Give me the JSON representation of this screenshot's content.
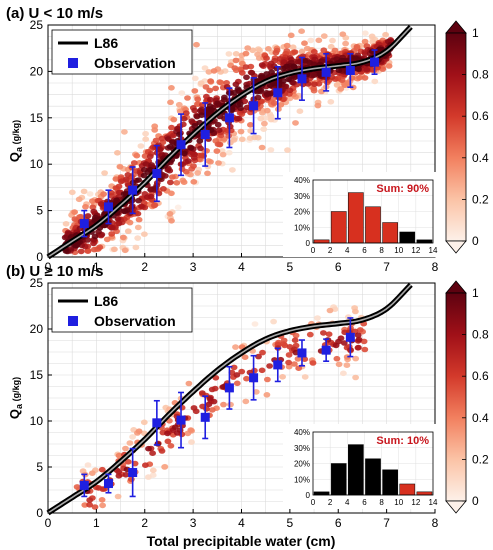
{
  "figure": {
    "xlabel": "Total precipitable water (cm)"
  },
  "chart_data": [
    {
      "type": "scatter",
      "title": "(a) U < 10 m/s",
      "xlabel": "",
      "ylabel": "Q",
      "ylabel_sub": "a",
      "ylabel_unit": " (g/kg)",
      "xlim": [
        0,
        8
      ],
      "ylim": [
        0,
        25
      ],
      "xticks": [
        "0",
        "1",
        "2",
        "3",
        "4",
        "5",
        "6",
        "7",
        "8"
      ],
      "yticks": [
        "0",
        "5",
        "10",
        "15",
        "20",
        "25"
      ],
      "grid": true,
      "legend": {
        "placement": "top-left",
        "entries": [
          "L86",
          "Observation"
        ]
      },
      "colorbar": {
        "ticks": [
          "0",
          "0.2",
          "0.4",
          "0.6",
          "0.8",
          "1"
        ],
        "colors": [
          "#fdf1e9",
          "#fbc3a6",
          "#f2805f",
          "#d33a2b",
          "#a01018",
          "#5e0210"
        ]
      },
      "series": [
        {
          "name": "L86",
          "type": "line",
          "x": [
            0,
            0.5,
            1,
            1.5,
            2,
            2.5,
            3,
            3.5,
            4,
            4.5,
            5,
            5.5,
            6,
            6.5,
            7,
            7.5
          ],
          "y": [
            0,
            1.7,
            3.4,
            5.6,
            8.0,
            10.7,
            13.2,
            15.5,
            17.4,
            18.9,
            19.8,
            20.3,
            20.6,
            21.0,
            22.2,
            24.8
          ]
        },
        {
          "name": "Observation",
          "type": "errorbar",
          "x": [
            0.75,
            1.25,
            1.75,
            2.25,
            2.75,
            3.25,
            3.75,
            4.25,
            4.75,
            5.25,
            5.75,
            6.25,
            6.75
          ],
          "y": [
            3.6,
            5.4,
            7.2,
            9.0,
            12.1,
            13.2,
            15.0,
            16.3,
            17.7,
            19.2,
            19.9,
            20.1,
            21.0
          ],
          "err": [
            1.4,
            1.8,
            2.5,
            3.0,
            3.3,
            3.4,
            3.2,
            3.0,
            2.8,
            2.3,
            2.0,
            1.8,
            1.3
          ]
        }
      ],
      "inset": {
        "type": "bar",
        "xticks": [
          "0",
          "2",
          "4",
          "6",
          "8",
          "10",
          "12",
          "14"
        ],
        "yticks": [
          "0",
          "10%",
          "20%",
          "30%",
          "40%"
        ],
        "values": [
          2,
          20,
          32,
          23,
          13,
          7,
          2
        ],
        "colors": [
          "#d7301f",
          "#d7301f",
          "#d7301f",
          "#d7301f",
          "#d7301f",
          "#000000",
          "#000000"
        ],
        "annotation": "Sum: 90%"
      }
    },
    {
      "type": "scatter",
      "title": "(b) U ≥ 10 m/s",
      "xlabel": "Total precipitable water (cm)",
      "ylabel": "Q",
      "ylabel_sub": "a",
      "ylabel_unit": " (g/kg)",
      "xlim": [
        0,
        8
      ],
      "ylim": [
        0,
        25
      ],
      "xticks": [
        "0",
        "1",
        "2",
        "3",
        "4",
        "5",
        "6",
        "7",
        "8"
      ],
      "yticks": [
        "0",
        "5",
        "10",
        "15",
        "20",
        "25"
      ],
      "grid": true,
      "legend": {
        "placement": "top-left",
        "entries": [
          "L86",
          "Observation"
        ]
      },
      "colorbar": {
        "ticks": [
          "0",
          "0.2",
          "0.4",
          "0.6",
          "0.8",
          "1"
        ],
        "colors": [
          "#fdf1e9",
          "#fbc3a6",
          "#f2805f",
          "#d33a2b",
          "#a01018",
          "#5e0210"
        ]
      },
      "series": [
        {
          "name": "L86",
          "type": "line",
          "x": [
            0,
            0.5,
            1,
            1.5,
            2,
            2.5,
            3,
            3.5,
            4,
            4.5,
            5,
            5.5,
            6,
            6.5,
            7,
            7.5
          ],
          "y": [
            0,
            1.7,
            3.4,
            5.6,
            8.0,
            10.7,
            13.2,
            15.5,
            17.4,
            18.9,
            19.8,
            20.3,
            20.6,
            21.0,
            22.2,
            24.8
          ]
        },
        {
          "name": "Observation",
          "type": "errorbar",
          "x": [
            0.75,
            1.25,
            1.75,
            2.25,
            2.75,
            3.25,
            3.75,
            4.25,
            4.75,
            5.25,
            5.75,
            6.25
          ],
          "y": [
            3.0,
            3.2,
            4.4,
            9.8,
            10.1,
            10.4,
            13.6,
            14.7,
            16.1,
            17.4,
            17.7,
            19.1
          ],
          "err": [
            1.2,
            1.0,
            2.6,
            2.4,
            3.0,
            2.3,
            2.3,
            2.4,
            1.8,
            1.4,
            1.2,
            2.1
          ]
        }
      ],
      "inset": {
        "type": "bar",
        "xticks": [
          "0",
          "2",
          "4",
          "6",
          "8",
          "10",
          "12",
          "14"
        ],
        "yticks": [
          "0",
          "10%",
          "20%",
          "30%",
          "40%"
        ],
        "values": [
          2,
          20,
          32,
          23,
          16,
          7,
          2
        ],
        "colors": [
          "#000000",
          "#000000",
          "#000000",
          "#000000",
          "#000000",
          "#d7301f",
          "#d7301f"
        ],
        "annotation": "Sum: 10%"
      }
    }
  ]
}
